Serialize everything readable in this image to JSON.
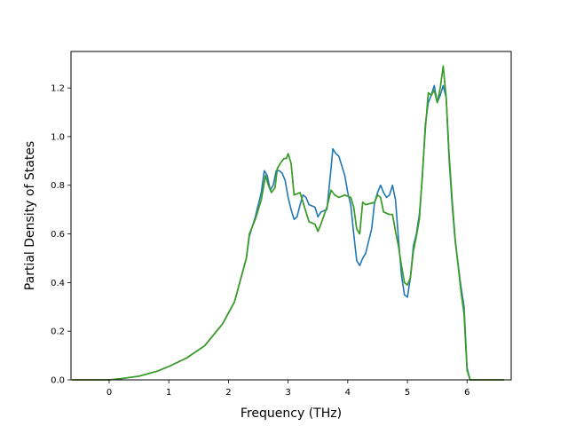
{
  "chart_data": {
    "type": "line",
    "title": "",
    "xlabel": "Frequency (THz)",
    "ylabel": "Partial Density of States",
    "xlim": [
      -0.64,
      6.74
    ],
    "ylim": [
      0.0,
      1.35
    ],
    "xticks": [
      0,
      1,
      2,
      3,
      4,
      5,
      6
    ],
    "yticks": [
      0.0,
      0.2,
      0.4,
      0.6,
      0.8,
      1.0,
      1.2
    ],
    "ytick_labels": [
      "0.0",
      "0.2",
      "0.4",
      "0.6",
      "0.8",
      "1.0",
      "1.2"
    ],
    "grid": false,
    "series": [
      {
        "color": "#1f77b4",
        "points": [
          [
            -0.62,
            0.0
          ],
          [
            0.0,
            0.0
          ],
          [
            0.2,
            0.005
          ],
          [
            0.5,
            0.015
          ],
          [
            0.8,
            0.035
          ],
          [
            1.0,
            0.055
          ],
          [
            1.3,
            0.09
          ],
          [
            1.6,
            0.14
          ],
          [
            1.9,
            0.23
          ],
          [
            2.1,
            0.32
          ],
          [
            2.3,
            0.5
          ],
          [
            2.35,
            0.59
          ],
          [
            2.45,
            0.67
          ],
          [
            2.55,
            0.77
          ],
          [
            2.6,
            0.86
          ],
          [
            2.65,
            0.84
          ],
          [
            2.7,
            0.78
          ],
          [
            2.75,
            0.8
          ],
          [
            2.8,
            0.86
          ],
          [
            2.85,
            0.86
          ],
          [
            2.9,
            0.85
          ],
          [
            2.95,
            0.82
          ],
          [
            3.0,
            0.75
          ],
          [
            3.05,
            0.7
          ],
          [
            3.1,
            0.66
          ],
          [
            3.15,
            0.67
          ],
          [
            3.2,
            0.72
          ],
          [
            3.25,
            0.76
          ],
          [
            3.3,
            0.75
          ],
          [
            3.35,
            0.72
          ],
          [
            3.45,
            0.71
          ],
          [
            3.5,
            0.67
          ],
          [
            3.55,
            0.69
          ],
          [
            3.65,
            0.7
          ],
          [
            3.72,
            0.87
          ],
          [
            3.75,
            0.95
          ],
          [
            3.8,
            0.93
          ],
          [
            3.85,
            0.92
          ],
          [
            3.9,
            0.88
          ],
          [
            3.95,
            0.84
          ],
          [
            4.0,
            0.77
          ],
          [
            4.05,
            0.72
          ],
          [
            4.1,
            0.6
          ],
          [
            4.15,
            0.49
          ],
          [
            4.2,
            0.47
          ],
          [
            4.25,
            0.5
          ],
          [
            4.3,
            0.52
          ],
          [
            4.4,
            0.62
          ],
          [
            4.45,
            0.73
          ],
          [
            4.5,
            0.77
          ],
          [
            4.55,
            0.8
          ],
          [
            4.6,
            0.77
          ],
          [
            4.65,
            0.75
          ],
          [
            4.7,
            0.76
          ],
          [
            4.75,
            0.8
          ],
          [
            4.8,
            0.74
          ],
          [
            4.85,
            0.58
          ],
          [
            4.9,
            0.43
          ],
          [
            4.95,
            0.35
          ],
          [
            5.0,
            0.34
          ],
          [
            5.05,
            0.42
          ],
          [
            5.1,
            0.55
          ],
          [
            5.15,
            0.6
          ],
          [
            5.2,
            0.68
          ],
          [
            5.25,
            0.83
          ],
          [
            5.3,
            1.05
          ],
          [
            5.35,
            1.14
          ],
          [
            5.4,
            1.17
          ],
          [
            5.45,
            1.21
          ],
          [
            5.5,
            1.14
          ],
          [
            5.55,
            1.17
          ],
          [
            5.6,
            1.21
          ],
          [
            5.65,
            1.16
          ],
          [
            5.7,
            0.9
          ],
          [
            5.75,
            0.72
          ],
          [
            5.8,
            0.57
          ],
          [
            5.9,
            0.38
          ],
          [
            5.95,
            0.3
          ],
          [
            6.0,
            0.05
          ],
          [
            6.05,
            0.0
          ],
          [
            6.62,
            0.0
          ]
        ]
      },
      {
        "color": "#ff7f0e",
        "points": [
          [
            -0.62,
            0.0
          ],
          [
            0.0,
            0.0
          ],
          [
            0.2,
            0.005
          ],
          [
            0.5,
            0.015
          ],
          [
            0.8,
            0.035
          ],
          [
            1.0,
            0.055
          ],
          [
            1.3,
            0.09
          ],
          [
            1.6,
            0.14
          ],
          [
            1.9,
            0.23
          ],
          [
            2.1,
            0.32
          ],
          [
            2.3,
            0.5
          ],
          [
            2.35,
            0.6
          ],
          [
            2.45,
            0.66
          ],
          [
            2.55,
            0.74
          ],
          [
            2.62,
            0.84
          ],
          [
            2.67,
            0.8
          ],
          [
            2.72,
            0.77
          ],
          [
            2.78,
            0.79
          ],
          [
            2.82,
            0.87
          ],
          [
            2.87,
            0.89
          ],
          [
            2.93,
            0.91
          ],
          [
            2.97,
            0.91
          ],
          [
            3.0,
            0.93
          ],
          [
            3.05,
            0.89
          ],
          [
            3.1,
            0.76
          ],
          [
            3.2,
            0.77
          ],
          [
            3.3,
            0.69
          ],
          [
            3.35,
            0.65
          ],
          [
            3.45,
            0.64
          ],
          [
            3.5,
            0.61
          ],
          [
            3.55,
            0.64
          ],
          [
            3.65,
            0.71
          ],
          [
            3.72,
            0.78
          ],
          [
            3.78,
            0.76
          ],
          [
            3.85,
            0.75
          ],
          [
            3.95,
            0.76
          ],
          [
            4.05,
            0.75
          ],
          [
            4.1,
            0.71
          ],
          [
            4.15,
            0.62
          ],
          [
            4.2,
            0.6
          ],
          [
            4.25,
            0.73
          ],
          [
            4.3,
            0.72
          ],
          [
            4.45,
            0.73
          ],
          [
            4.5,
            0.76
          ],
          [
            4.55,
            0.75
          ],
          [
            4.6,
            0.69
          ],
          [
            4.7,
            0.68
          ],
          [
            4.75,
            0.68
          ],
          [
            4.8,
            0.61
          ],
          [
            4.85,
            0.55
          ],
          [
            4.9,
            0.47
          ],
          [
            4.95,
            0.4
          ],
          [
            5.0,
            0.39
          ],
          [
            5.05,
            0.42
          ],
          [
            5.1,
            0.53
          ],
          [
            5.15,
            0.59
          ],
          [
            5.2,
            0.66
          ],
          [
            5.25,
            0.84
          ],
          [
            5.3,
            1.03
          ],
          [
            5.35,
            1.18
          ],
          [
            5.4,
            1.17
          ],
          [
            5.45,
            1.19
          ],
          [
            5.5,
            1.14
          ],
          [
            5.55,
            1.2
          ],
          [
            5.6,
            1.29
          ],
          [
            5.65,
            1.16
          ],
          [
            5.7,
            0.92
          ],
          [
            5.75,
            0.74
          ],
          [
            5.8,
            0.58
          ],
          [
            5.9,
            0.36
          ],
          [
            5.95,
            0.27
          ],
          [
            6.0,
            0.04
          ],
          [
            6.05,
            0.0
          ],
          [
            6.62,
            0.0
          ]
        ]
      },
      {
        "color": "#2ca02c",
        "points": [
          [
            -0.62,
            0.0
          ],
          [
            0.0,
            0.0
          ],
          [
            0.2,
            0.005
          ],
          [
            0.5,
            0.015
          ],
          [
            0.8,
            0.035
          ],
          [
            1.0,
            0.055
          ],
          [
            1.3,
            0.09
          ],
          [
            1.6,
            0.14
          ],
          [
            1.9,
            0.23
          ],
          [
            2.1,
            0.32
          ],
          [
            2.3,
            0.5
          ],
          [
            2.35,
            0.6
          ],
          [
            2.45,
            0.66
          ],
          [
            2.55,
            0.74
          ],
          [
            2.62,
            0.84
          ],
          [
            2.67,
            0.8
          ],
          [
            2.72,
            0.77
          ],
          [
            2.78,
            0.79
          ],
          [
            2.82,
            0.87
          ],
          [
            2.87,
            0.89
          ],
          [
            2.93,
            0.91
          ],
          [
            2.97,
            0.91
          ],
          [
            3.0,
            0.93
          ],
          [
            3.05,
            0.89
          ],
          [
            3.1,
            0.76
          ],
          [
            3.2,
            0.77
          ],
          [
            3.3,
            0.69
          ],
          [
            3.35,
            0.65
          ],
          [
            3.45,
            0.64
          ],
          [
            3.5,
            0.61
          ],
          [
            3.55,
            0.64
          ],
          [
            3.65,
            0.71
          ],
          [
            3.72,
            0.78
          ],
          [
            3.78,
            0.76
          ],
          [
            3.85,
            0.75
          ],
          [
            3.95,
            0.76
          ],
          [
            4.05,
            0.75
          ],
          [
            4.1,
            0.71
          ],
          [
            4.15,
            0.62
          ],
          [
            4.2,
            0.6
          ],
          [
            4.25,
            0.73
          ],
          [
            4.3,
            0.72
          ],
          [
            4.45,
            0.73
          ],
          [
            4.5,
            0.76
          ],
          [
            4.55,
            0.75
          ],
          [
            4.6,
            0.69
          ],
          [
            4.7,
            0.68
          ],
          [
            4.75,
            0.68
          ],
          [
            4.8,
            0.61
          ],
          [
            4.85,
            0.55
          ],
          [
            4.9,
            0.47
          ],
          [
            4.95,
            0.4
          ],
          [
            5.0,
            0.39
          ],
          [
            5.05,
            0.42
          ],
          [
            5.1,
            0.53
          ],
          [
            5.15,
            0.59
          ],
          [
            5.2,
            0.66
          ],
          [
            5.25,
            0.84
          ],
          [
            5.3,
            1.03
          ],
          [
            5.35,
            1.18
          ],
          [
            5.4,
            1.17
          ],
          [
            5.45,
            1.19
          ],
          [
            5.5,
            1.14
          ],
          [
            5.55,
            1.2
          ],
          [
            5.6,
            1.29
          ],
          [
            5.65,
            1.16
          ],
          [
            5.7,
            0.92
          ],
          [
            5.75,
            0.74
          ],
          [
            5.8,
            0.58
          ],
          [
            5.9,
            0.36
          ],
          [
            5.95,
            0.27
          ],
          [
            6.0,
            0.04
          ],
          [
            6.05,
            0.0
          ],
          [
            6.62,
            0.0
          ]
        ]
      }
    ]
  }
}
